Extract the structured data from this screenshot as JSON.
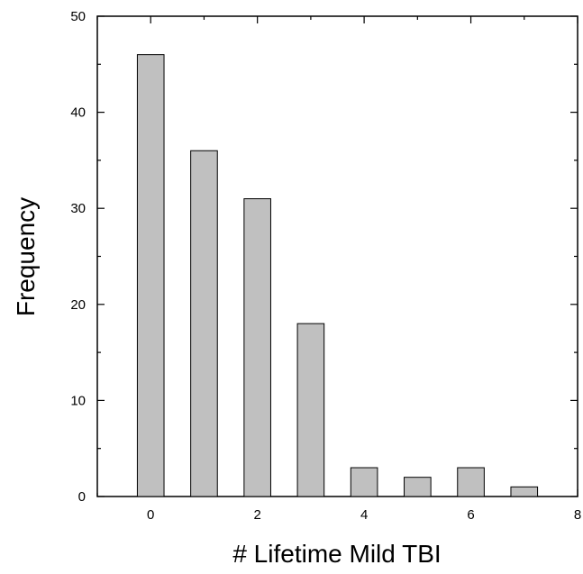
{
  "chart_data": {
    "type": "bar",
    "title": "",
    "xlabel": "# Lifetime Mild TBI",
    "ylabel": "Frequency",
    "x": [
      0,
      1,
      2,
      3,
      4,
      5,
      6,
      7
    ],
    "values": [
      46,
      36,
      31,
      18,
      3,
      2,
      3,
      1
    ],
    "xlim": [
      -1,
      8
    ],
    "ylim": [
      0,
      50
    ],
    "x_major_ticks": [
      0,
      2,
      4,
      6,
      8
    ],
    "y_major_ticks": [
      0,
      10,
      20,
      30,
      40,
      50
    ],
    "grid": false,
    "legend": "none",
    "bar_color": "#c0c0c0",
    "bar_edge_color": "#000000"
  }
}
